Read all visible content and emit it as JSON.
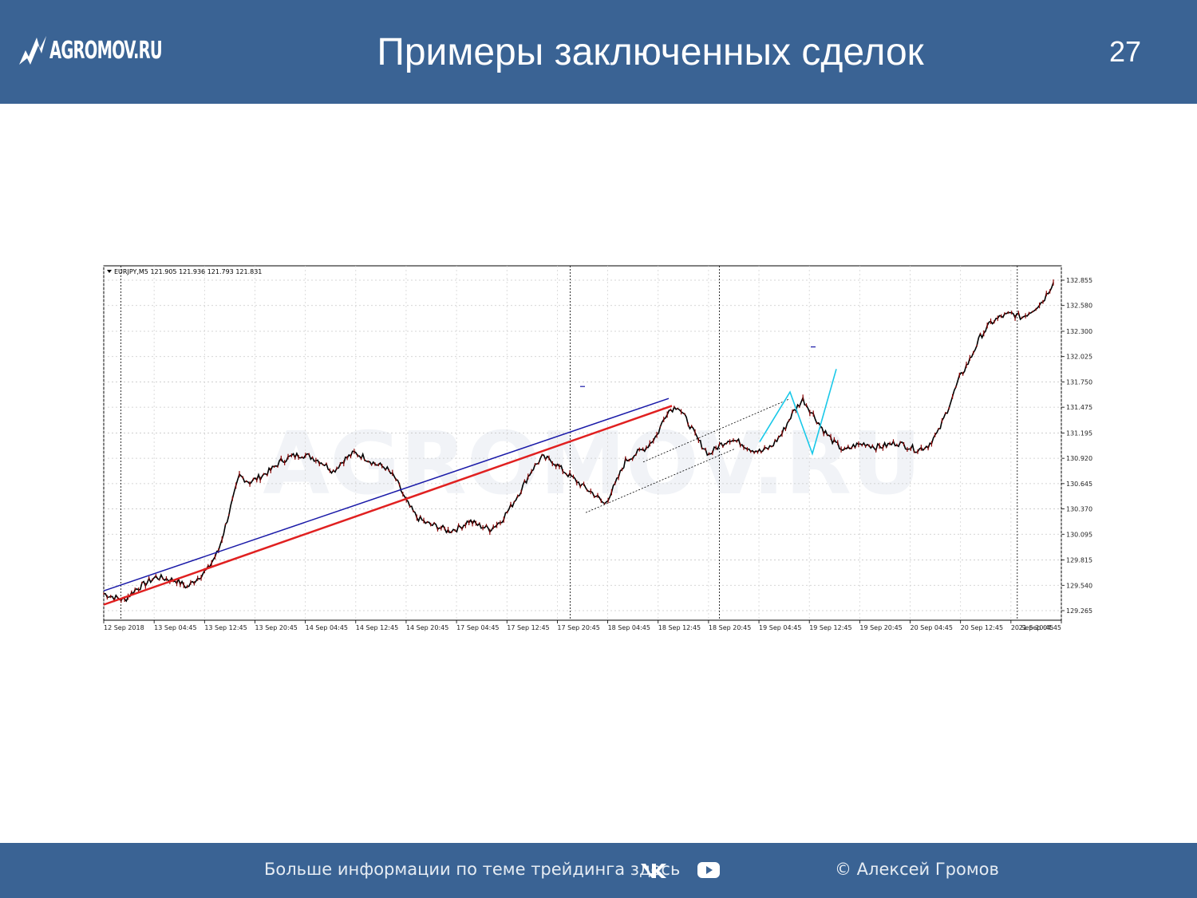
{
  "header": {
    "logo_text": "AGROMOV.RU",
    "title": "Примеры заключенных сделок",
    "page_number": "27"
  },
  "footer": {
    "info_text": "Больше информации по теме трейдинга здесь",
    "vk_icon": "vk-icon",
    "youtube_icon": "youtube-icon",
    "copyright": "© Алексей Громов"
  },
  "colors": {
    "bar": "#3a6394",
    "blue_line": "#1a1aa8",
    "red_line": "#e02020",
    "cyan_line": "#19c8e8",
    "candle": "#8b0000"
  },
  "chart_data": {
    "type": "line",
    "header_label": "EURJPY,M5  121.905 121.936 121.793 121.831",
    "x_ticks": [
      "12 Sep 2018",
      "13 Sep 04:45",
      "13 Sep 12:45",
      "13 Sep 20:45",
      "14 Sep 04:45",
      "14 Sep 12:45",
      "14 Sep 20:45",
      "17 Sep 04:45",
      "17 Sep 12:45",
      "17 Sep 20:45",
      "18 Sep 04:45",
      "18 Sep 12:45",
      "18 Sep 20:45",
      "19 Sep 04:45",
      "19 Sep 12:45",
      "19 Sep 20:45",
      "20 Sep 04:45",
      "20 Sep 12:45",
      "20 Sep 20:45",
      "21 Sep 04:45"
    ],
    "y_ticks": [
      "129.265",
      "129.540",
      "129.815",
      "130.095",
      "130.370",
      "130.645",
      "130.920",
      "131.195",
      "131.475",
      "131.750",
      "132.025",
      "132.300",
      "132.580",
      "132.855"
    ],
    "ylim": [
      129.265,
      132.855
    ],
    "grid": true,
    "series": [
      {
        "values": [
          129.45,
          129.41,
          129.38,
          129.49,
          129.56,
          129.63,
          129.61,
          129.59,
          129.52,
          129.62,
          129.72,
          129.92,
          130.32,
          130.73,
          130.66,
          130.72,
          130.79,
          130.89,
          130.94,
          130.96,
          130.93,
          130.87,
          130.78,
          130.9,
          130.98,
          130.93,
          130.86,
          130.82,
          130.69,
          130.45,
          130.28,
          130.21,
          130.18,
          130.13,
          130.16,
          130.24,
          130.19,
          130.15,
          130.23,
          130.39,
          130.58,
          130.79,
          130.93,
          130.89,
          130.79,
          130.7,
          130.61,
          130.53,
          130.42,
          130.63,
          130.89,
          130.97,
          131.04,
          131.17,
          131.43,
          131.49,
          131.31,
          131.11,
          130.96,
          131.06,
          131.13,
          131.09,
          131.02,
          130.99,
          131.05,
          131.19,
          131.41,
          131.56,
          131.39,
          131.22,
          131.09,
          131.0,
          131.06,
          131.08,
          131.04,
          131.06,
          131.09,
          131.05,
          131.01,
          131.06,
          131.21,
          131.49,
          131.79,
          131.99,
          132.24,
          132.39,
          132.46,
          132.49,
          132.45,
          132.53,
          132.63,
          132.83
        ]
      }
    ],
    "trend_lines": [
      "blue upper channel",
      "red lower channel",
      "dotted channel",
      "cyan zigzag"
    ]
  }
}
